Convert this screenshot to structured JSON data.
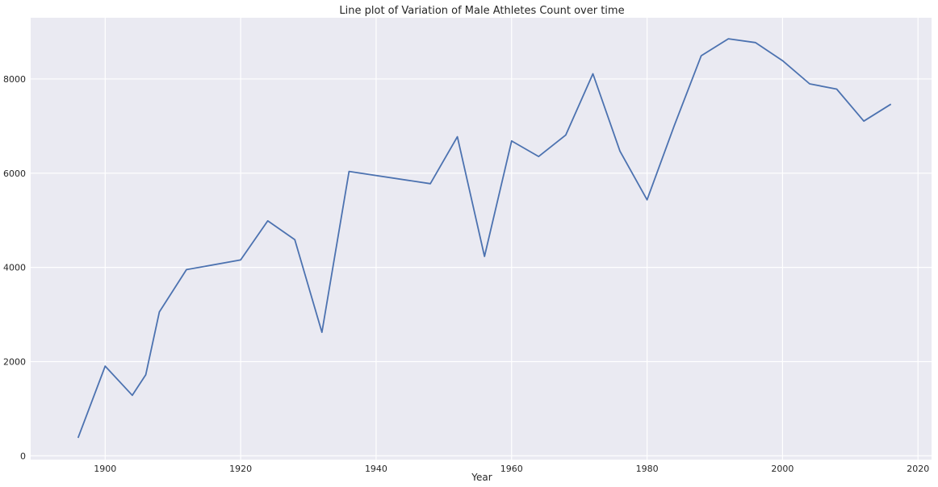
{
  "chart_data": {
    "type": "line",
    "title": "Line plot of Variation of Male Athletes Count over time",
    "xlabel": "Year",
    "ylabel": "",
    "xlim": [
      1889,
      2022
    ],
    "ylim": [
      -80,
      9300
    ],
    "xticks": [
      1900,
      1920,
      1940,
      1960,
      1980,
      2000,
      2020
    ],
    "yticks": [
      0,
      2000,
      4000,
      6000,
      8000
    ],
    "grid": true,
    "background": "#eaeaf2",
    "grid_color": "#ffffff",
    "line_color": "#4c72b0",
    "series": [
      {
        "x": [
          1896,
          1900,
          1904,
          1906,
          1908,
          1912,
          1920,
          1924,
          1928,
          1932,
          1936,
          1948,
          1952,
          1956,
          1960,
          1964,
          1968,
          1972,
          1976,
          1980,
          1984,
          1988,
          1992,
          1996,
          2000,
          2004,
          2008,
          2012,
          2016
        ],
        "y": [
          380,
          1903,
          1285,
          1722,
          3054,
          3953,
          4158,
          4989,
          4588,
          2622,
          6038,
          5778,
          6773,
          4234,
          6684,
          6354,
          6811,
          8110,
          6469,
          5435,
          7001,
          8494,
          8853,
          8772,
          8390,
          7897,
          7786,
          7105,
          7465
        ]
      }
    ]
  }
}
